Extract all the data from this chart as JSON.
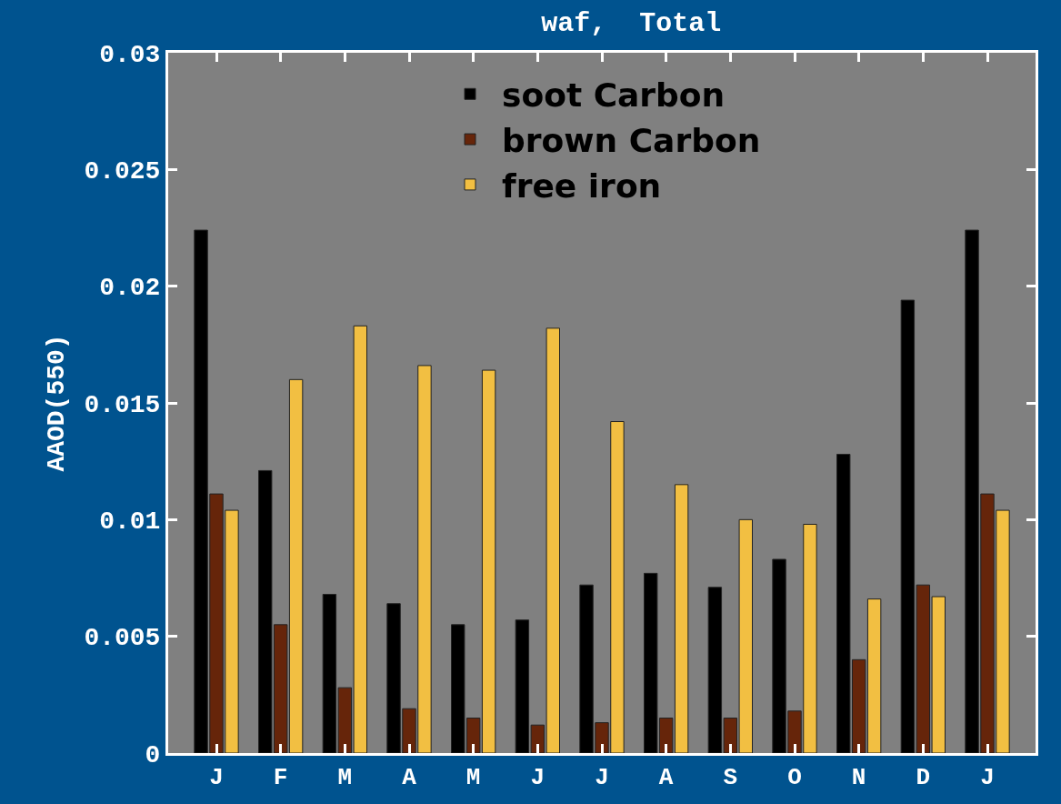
{
  "chart_data": {
    "type": "bar",
    "title": "waf,  Total",
    "ylabel": "AAOD(550)",
    "categories": [
      "J",
      "F",
      "M",
      "A",
      "M",
      "J",
      "J",
      "A",
      "S",
      "O",
      "N",
      "D",
      "J"
    ],
    "series": [
      {
        "name": "soot Carbon",
        "color": "#000000",
        "values": [
          0.0224,
          0.0121,
          0.0068,
          0.0064,
          0.0055,
          0.0057,
          0.0072,
          0.0077,
          0.0071,
          0.0083,
          0.0128,
          0.0194,
          0.0224
        ]
      },
      {
        "name": "brown Carbon",
        "color": "#66250a",
        "values": [
          0.0111,
          0.0055,
          0.0028,
          0.0019,
          0.0015,
          0.0012,
          0.0013,
          0.0015,
          0.0015,
          0.0018,
          0.004,
          0.0072,
          0.0111
        ]
      },
      {
        "name": "free iron",
        "color": "#f2bf42",
        "values": [
          0.0104,
          0.016,
          0.0183,
          0.0166,
          0.0164,
          0.0182,
          0.0142,
          0.0115,
          0.01,
          0.0098,
          0.0066,
          0.0067,
          0.0104
        ]
      }
    ],
    "ylim": [
      0,
      0.03
    ],
    "yticks": [
      0,
      {
        "value": 0.005,
        "label": "0.005"
      },
      {
        "value": 0.01,
        "label": "0.01"
      },
      {
        "value": 0.015,
        "label": "0.015"
      },
      {
        "value": 0.02,
        "label": "0.02"
      },
      {
        "value": 0.025,
        "label": "0.025"
      },
      {
        "value": 0.03,
        "label": "0.03"
      }
    ],
    "legend": "top"
  }
}
